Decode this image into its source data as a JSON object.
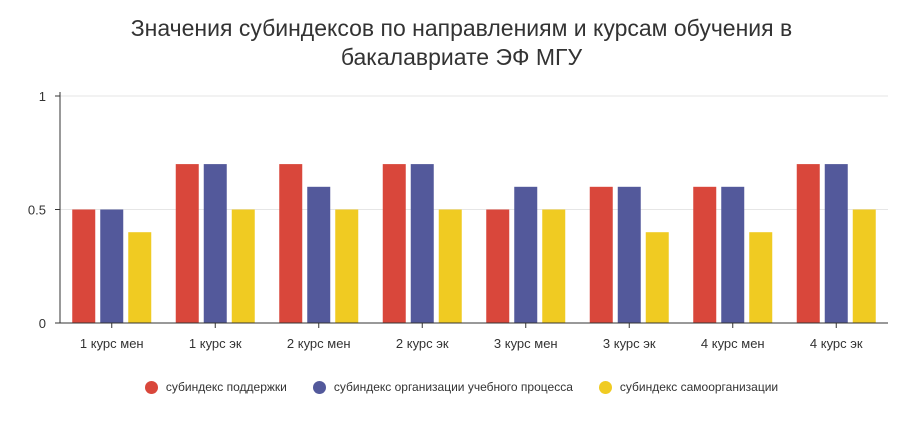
{
  "chart_data": {
    "type": "bar",
    "title_lines": [
      "Значения субиндексов по направлениям и курсам обучения в",
      "бакалавриате ЭФ МГУ"
    ],
    "categories": [
      "1 курс мен",
      "1 курс эк",
      "2 курс мен",
      "2 курс эк",
      "3 курс мен",
      "3 курс эк",
      "4 курс мен",
      "4 курс эк"
    ],
    "series": [
      {
        "name": "субиндекс поддержки",
        "color": "#d9473b",
        "values": [
          0.5,
          0.7,
          0.7,
          0.7,
          0.5,
          0.6,
          0.6,
          0.7
        ]
      },
      {
        "name": "субиндекс организации учебного процесса",
        "color": "#53599b",
        "values": [
          0.5,
          0.7,
          0.6,
          0.7,
          0.6,
          0.6,
          0.6,
          0.7
        ]
      },
      {
        "name": "субиндекс самоорганизации",
        "color": "#f0cb22",
        "values": [
          0.4,
          0.5,
          0.5,
          0.5,
          0.5,
          0.4,
          0.4,
          0.5
        ]
      }
    ],
    "ylim": [
      0,
      1
    ],
    "yticks": [
      "0",
      "0.5",
      "1"
    ],
    "grid": true,
    "legend_position": "bottom"
  }
}
